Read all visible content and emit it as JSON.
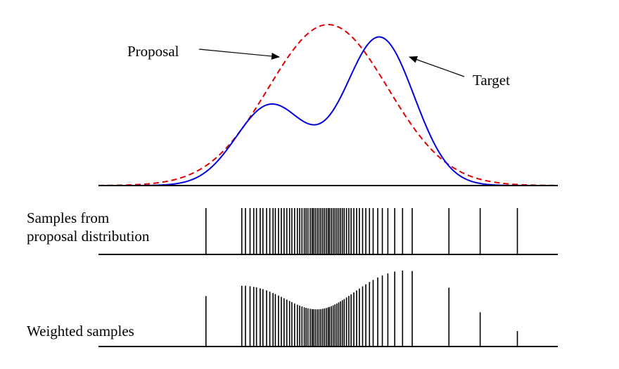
{
  "labels": {
    "proposal": "Proposal",
    "target": "Target",
    "samples_line1": "Samples from",
    "samples_line2": "proposal distribution",
    "weighted": "Weighted samples"
  },
  "colors": {
    "proposal_curve": "#e00000",
    "target_curve": "#0000dd",
    "axis": "#000000",
    "sample_line": "#000000"
  },
  "chart_data": {
    "type": "line",
    "x_domain": [
      0,
      1
    ],
    "y_range": [
      0,
      1
    ],
    "series": [
      {
        "name": "Proposal",
        "style": "dashed",
        "components": [
          {
            "weight": 1.0,
            "mean": 0.5,
            "sd": 0.13
          }
        ]
      },
      {
        "name": "Target",
        "style": "solid",
        "components": [
          {
            "weight": 0.5,
            "mean": 0.375,
            "sd": 0.075
          },
          {
            "weight": 0.92,
            "mean": 0.612,
            "sd": 0.075
          }
        ]
      }
    ],
    "samples": [
      0.234,
      0.312,
      0.32,
      0.33,
      0.338,
      0.344,
      0.352,
      0.358,
      0.366,
      0.373,
      0.38,
      0.385,
      0.392,
      0.398,
      0.404,
      0.41,
      0.416,
      0.421,
      0.427,
      0.433,
      0.438,
      0.443,
      0.448,
      0.452,
      0.456,
      0.461,
      0.465,
      0.468,
      0.472,
      0.476,
      0.48,
      0.484,
      0.488,
      0.492,
      0.496,
      0.5,
      0.503,
      0.507,
      0.511,
      0.515,
      0.519,
      0.523,
      0.527,
      0.531,
      0.535,
      0.54,
      0.545,
      0.55,
      0.556,
      0.562,
      0.568,
      0.575,
      0.582,
      0.59,
      0.598,
      0.608,
      0.618,
      0.63,
      0.645,
      0.662,
      0.683,
      0.763,
      0.831,
      0.912
    ],
    "weights_note": "weighted sample heights are proportional to target/proposal density ratio"
  }
}
